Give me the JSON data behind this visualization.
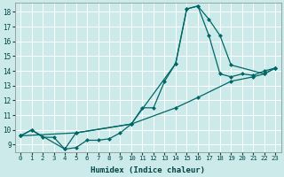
{
  "title": "",
  "xlabel": "Humidex (Indice chaleur)",
  "ylabel": "",
  "background_color": "#cceaea",
  "grid_color": "#ffffff",
  "line_color": "#006666",
  "xlim": [
    -0.5,
    23.5
  ],
  "ylim": [
    8.5,
    18.6
  ],
  "xticks": [
    0,
    1,
    2,
    3,
    4,
    5,
    6,
    7,
    8,
    9,
    10,
    11,
    12,
    13,
    14,
    15,
    16,
    17,
    18,
    19,
    20,
    21,
    22,
    23
  ],
  "yticks": [
    9,
    10,
    11,
    12,
    13,
    14,
    15,
    16,
    17,
    18
  ],
  "series1": [
    [
      0,
      9.6
    ],
    [
      1,
      10.0
    ],
    [
      2,
      9.5
    ],
    [
      3,
      9.5
    ],
    [
      4,
      8.7
    ],
    [
      5,
      8.8
    ],
    [
      6,
      9.3
    ],
    [
      7,
      9.3
    ],
    [
      8,
      9.4
    ],
    [
      9,
      9.8
    ],
    [
      10,
      10.4
    ],
    [
      11,
      11.5
    ],
    [
      12,
      11.5
    ],
    [
      13,
      13.3
    ],
    [
      14,
      14.5
    ],
    [
      15,
      18.2
    ],
    [
      16,
      18.4
    ],
    [
      17,
      16.4
    ],
    [
      18,
      13.8
    ],
    [
      19,
      13.6
    ],
    [
      20,
      13.8
    ],
    [
      21,
      13.7
    ],
    [
      22,
      14.0
    ],
    [
      23,
      14.2
    ]
  ],
  "series2": [
    [
      0,
      9.6
    ],
    [
      1,
      10.0
    ],
    [
      4,
      8.7
    ],
    [
      5,
      9.8
    ],
    [
      10,
      10.4
    ],
    [
      14,
      14.5
    ],
    [
      15,
      18.2
    ],
    [
      16,
      18.4
    ],
    [
      17,
      17.5
    ],
    [
      18,
      16.4
    ],
    [
      19,
      14.4
    ],
    [
      22,
      13.8
    ],
    [
      23,
      14.2
    ]
  ],
  "series3": [
    [
      0,
      9.6
    ],
    [
      5,
      9.8
    ],
    [
      10,
      10.4
    ],
    [
      14,
      11.5
    ],
    [
      16,
      12.2
    ],
    [
      19,
      13.3
    ],
    [
      21,
      13.6
    ],
    [
      22,
      13.8
    ],
    [
      23,
      14.2
    ]
  ]
}
